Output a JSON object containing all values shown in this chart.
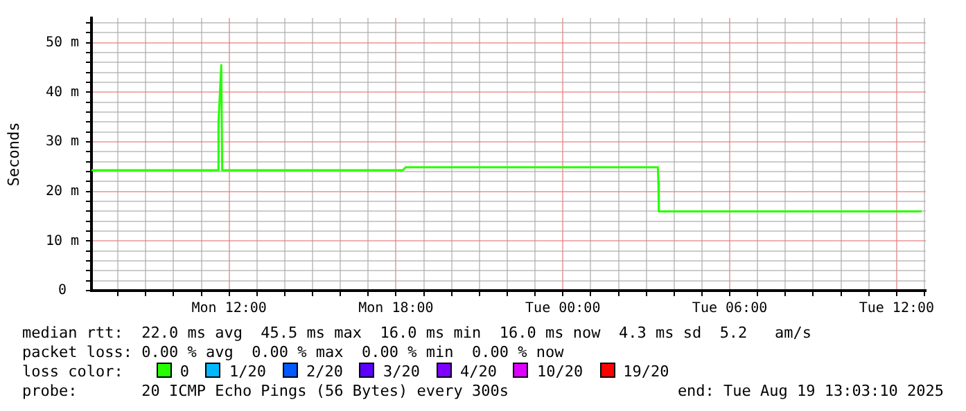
{
  "chart_data": {
    "type": "line",
    "ylabel": "Seconds",
    "legend_title": "loss color:",
    "legend": "bottom",
    "grid": true,
    "marker": "none",
    "line_style": "solid",
    "xlim": [
      "2025-08-18T07:03",
      "2025-08-19T13:03"
    ],
    "xticks": [
      {
        "value": "2025-08-18T08:00",
        "label": null
      },
      {
        "value": "2025-08-18T09:00",
        "label": null
      },
      {
        "value": "2025-08-18T10:00",
        "label": null
      },
      {
        "value": "2025-08-18T11:00",
        "label": null
      },
      {
        "value": "2025-08-18T12:00",
        "label": "Mon 12:00"
      },
      {
        "value": "2025-08-18T13:00",
        "label": null
      },
      {
        "value": "2025-08-18T14:00",
        "label": null
      },
      {
        "value": "2025-08-18T15:00",
        "label": null
      },
      {
        "value": "2025-08-18T16:00",
        "label": null
      },
      {
        "value": "2025-08-18T17:00",
        "label": null
      },
      {
        "value": "2025-08-18T18:00",
        "label": "Mon 18:00"
      },
      {
        "value": "2025-08-18T19:00",
        "label": null
      },
      {
        "value": "2025-08-18T20:00",
        "label": null
      },
      {
        "value": "2025-08-18T21:00",
        "label": null
      },
      {
        "value": "2025-08-18T22:00",
        "label": null
      },
      {
        "value": "2025-08-18T23:00",
        "label": null
      },
      {
        "value": "2025-08-19T00:00",
        "label": "Tue 00:00"
      },
      {
        "value": "2025-08-19T01:00",
        "label": null
      },
      {
        "value": "2025-08-19T02:00",
        "label": null
      },
      {
        "value": "2025-08-19T03:00",
        "label": null
      },
      {
        "value": "2025-08-19T04:00",
        "label": null
      },
      {
        "value": "2025-08-19T05:00",
        "label": null
      },
      {
        "value": "2025-08-19T06:00",
        "label": "Tue 06:00"
      },
      {
        "value": "2025-08-19T07:00",
        "label": null
      },
      {
        "value": "2025-08-19T08:00",
        "label": null
      },
      {
        "value": "2025-08-19T09:00",
        "label": null
      },
      {
        "value": "2025-08-19T10:00",
        "label": null
      },
      {
        "value": "2025-08-19T11:00",
        "label": null
      },
      {
        "value": "2025-08-19T12:00",
        "label": "Tue 12:00"
      },
      {
        "value": "2025-08-19T13:00",
        "label": null
      }
    ],
    "ylim": [
      0,
      55
    ],
    "yticks": [
      0,
      {
        "value": 2,
        "label": null
      },
      {
        "value": 4,
        "label": null
      },
      {
        "value": 6,
        "label": null
      },
      {
        "value": 8,
        "label": null
      },
      {
        "value": 10,
        "label": "10 m"
      },
      {
        "value": 12,
        "label": null
      },
      {
        "value": 14,
        "label": null
      },
      {
        "value": 16,
        "label": null
      },
      {
        "value": 18,
        "label": null
      },
      {
        "value": 20,
        "label": "20 m"
      },
      {
        "value": 22,
        "label": null
      },
      {
        "value": 24,
        "label": null
      },
      {
        "value": 26,
        "label": null
      },
      {
        "value": 28,
        "label": null
      },
      {
        "value": 30,
        "label": "30 m"
      },
      {
        "value": 32,
        "label": null
      },
      {
        "value": 34,
        "label": null
      },
      {
        "value": 36,
        "label": null
      },
      {
        "value": 38,
        "label": null
      },
      {
        "value": 40,
        "label": "40 m"
      },
      {
        "value": 42,
        "label": null
      },
      {
        "value": 44,
        "label": null
      },
      {
        "value": 46,
        "label": null
      },
      {
        "value": 48,
        "label": null
      },
      {
        "value": 50,
        "label": "50 m"
      },
      {
        "value": 52,
        "label": null
      },
      {
        "value": 54,
        "label": null
      }
    ],
    "series": [
      {
        "name": "0",
        "color": "#26ff00",
        "x": [
          "2025-08-18T07:03",
          "2025-08-18T11:36",
          "2025-08-18T11:37",
          "2025-08-18T11:43",
          "2025-08-18T11:45",
          "2025-08-18T18:15",
          "2025-08-18T18:21",
          "2025-08-19T03:25",
          "2025-08-19T03:26",
          "2025-08-19T03:27",
          "2025-08-19T12:54"
        ],
        "values": [
          24.3,
          24.3,
          33.9,
          45.5,
          24.3,
          24.3,
          24.9,
          24.9,
          22,
          16,
          16
        ]
      },
      {
        "name": "1/20",
        "color": "#00b8ff"
      },
      {
        "name": "2/20",
        "color": "#0059ff"
      },
      {
        "name": "3/20",
        "color": "#5e00ff"
      },
      {
        "name": "4/20",
        "color": "#7e00ff"
      },
      {
        "name": "10/20",
        "color": "#dd00ff"
      },
      {
        "name": "19/20",
        "color": "#ff0000"
      }
    ],
    "annotations": [
      "median rtt:  22.0 ms avg  45.5 ms max  16.0 ms min  16.0 ms now  4.3 ms sd  5.2   am/s",
      "packet loss: 0.00 % avg  0.00 % max  0.00 % min  0.00 % now",
      "probe:       20 ICMP Echo Pings (56 Bytes) every 300s",
      "end: Tue Aug 19 13:03:10 2025"
    ]
  }
}
